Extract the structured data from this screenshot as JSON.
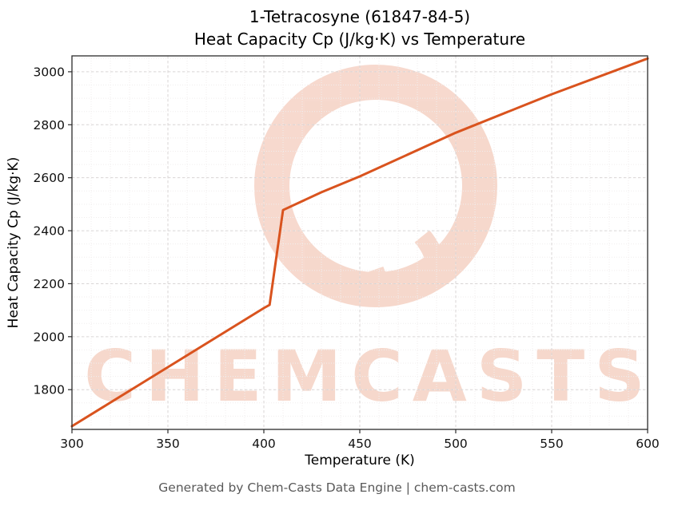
{
  "header": {
    "title_line1": "1-Tetracosyne (61847-84-5)",
    "title_line2": "Heat Capacity Cp (J/kg·K) vs Temperature"
  },
  "footer": {
    "text": "Generated by Chem-Casts Data Engine | chem-casts.com"
  },
  "watermark": {
    "text": "CHEMCASTS",
    "color": "#d9531e",
    "opacity": 0.22
  },
  "chart_data": {
    "type": "line",
    "title": "1-Tetracosyne (61847-84-5) Heat Capacity Cp (J/kg·K) vs Temperature",
    "xlabel": "Temperature (K)",
    "ylabel": "Heat Capacity Cp (J/kg·K)",
    "xlim": [
      300,
      600
    ],
    "ylim": [
      1650,
      3060
    ],
    "xticks": [
      300,
      350,
      400,
      450,
      500,
      550,
      600
    ],
    "yticks": [
      1800,
      2000,
      2200,
      2400,
      2600,
      2800,
      3000
    ],
    "grid": true,
    "legend": "none",
    "line_color": "#d9531e",
    "line_width": 3,
    "series": [
      {
        "name": "Heat Capacity Cp",
        "x": [
          300,
          350,
          400,
          403,
          410,
          430,
          450,
          500,
          550,
          600
        ],
        "y": [
          1662,
          1885,
          2108,
          2120,
          2478,
          2545,
          2605,
          2770,
          2915,
          3050
        ]
      }
    ]
  }
}
